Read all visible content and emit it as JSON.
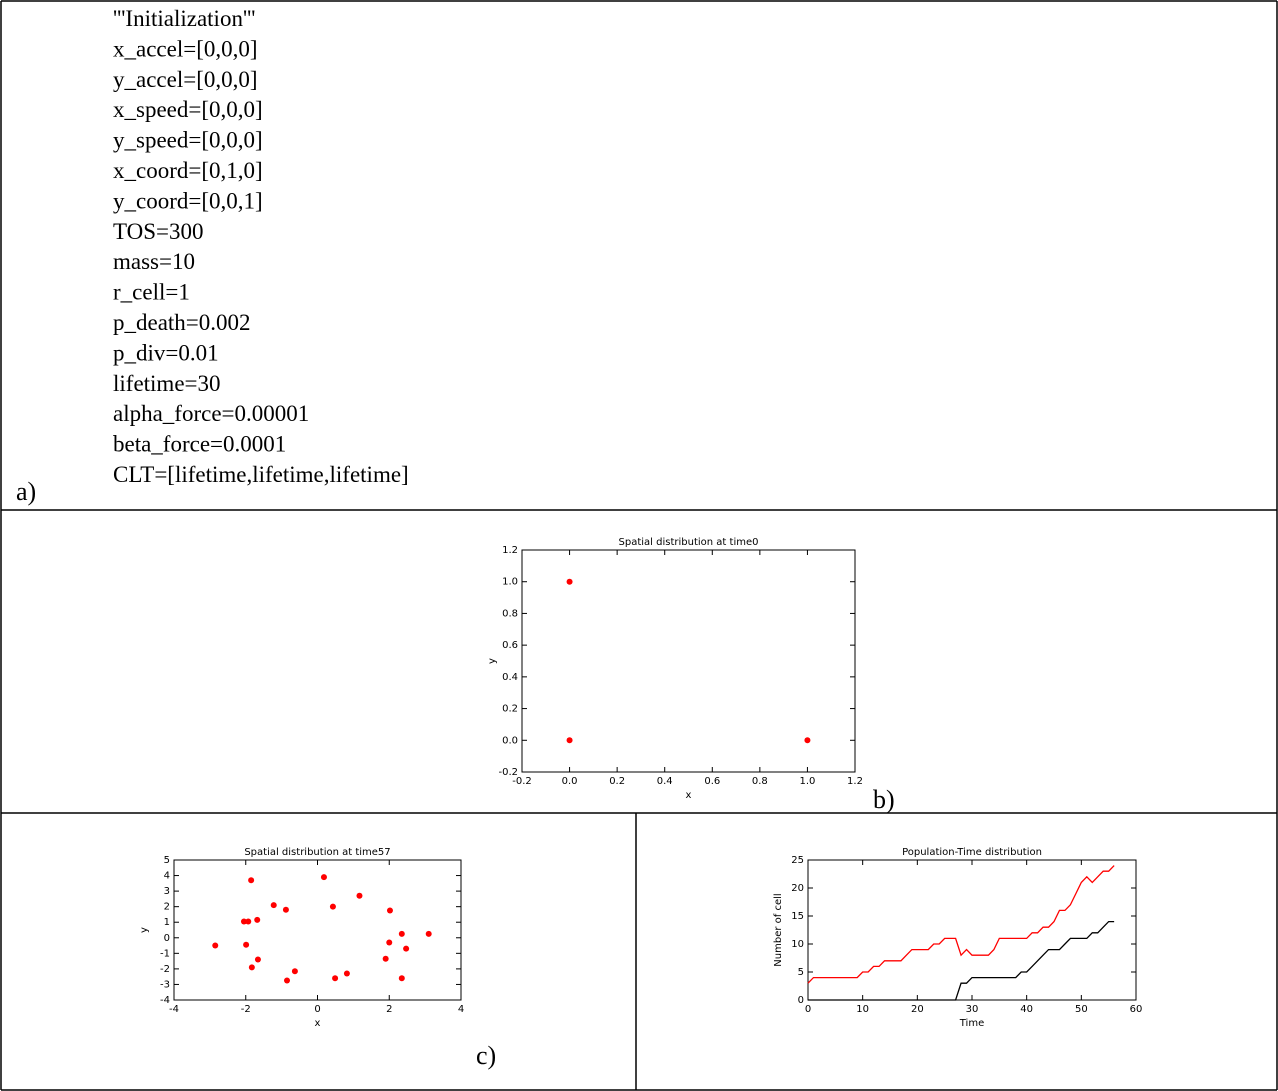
{
  "code_lines": [
    "'''Initialization'''",
    "x_accel=[0,0,0]",
    "y_accel=[0,0,0]",
    "x_speed=[0,0,0]",
    "y_speed=[0,0,0]",
    "x_coord=[0,1,0]",
    "y_coord=[0,0,1]",
    "TOS=300",
    "mass=10",
    "r_cell=1",
    "p_death=0.002",
    "p_div=0.01",
    "lifetime=30",
    "alpha_force=0.00001",
    "beta_force=0.0001",
    " CLT=[lifetime,lifetime,lifetime]"
  ],
  "panel_labels": [
    "a)",
    "b)",
    "c)"
  ],
  "chart_data": [
    {
      "type": "scatter",
      "title": "Spatial distribution at time0",
      "xlabel": "x",
      "ylabel": "y",
      "x": [
        0,
        1,
        0
      ],
      "values": [
        0,
        0,
        1
      ],
      "color": "#ff0000",
      "xlim": [
        -0.2,
        1.2
      ],
      "ylim": [
        -0.2,
        1.2
      ],
      "xticks": [
        -0.2,
        {
          "value": 0,
          "label": "0.0"
        },
        0.2,
        0.4,
        0.6,
        0.8,
        {
          "value": 1,
          "label": "1.0"
        },
        1.2
      ],
      "yticks": [
        -0.2,
        {
          "value": 0,
          "label": "0.0"
        },
        0.2,
        0.4,
        0.6,
        0.8,
        {
          "value": 1,
          "label": "1.0"
        },
        1.2
      ]
    },
    {
      "type": "scatter",
      "title": "Spatial distribution at time57",
      "xlabel": "x",
      "ylabel": "y",
      "x": [
        -1.85,
        0.18,
        1.17,
        -1.22,
        -0.88,
        0.43,
        2.02,
        -2.05,
        -1.93,
        -1.68,
        3.1,
        2.35,
        2.0,
        2.47,
        -2.85,
        -1.99,
        -1.66,
        1.9,
        -1.83,
        -0.63,
        0.82,
        0.49,
        -0.85,
        2.35
      ],
      "values": [
        3.7,
        3.9,
        2.7,
        2.1,
        1.8,
        2.0,
        1.75,
        1.05,
        1.05,
        1.15,
        0.25,
        0.25,
        -0.3,
        -0.7,
        -0.5,
        -0.45,
        -1.4,
        -1.35,
        -1.9,
        -2.15,
        -2.3,
        -2.6,
        -2.75,
        -2.6
      ],
      "color": "#ff0000",
      "xlim": [
        -4,
        4
      ],
      "ylim": [
        -4,
        5
      ],
      "xticks": [
        -4,
        -2,
        0,
        2,
        4
      ],
      "yticks": [
        -4,
        -3,
        -2,
        -1,
        0,
        1,
        2,
        3,
        4,
        5
      ]
    },
    {
      "type": "line",
      "title": "Population-Time distribution",
      "xlabel": "Time",
      "ylabel": "Number of cell",
      "x": [
        0,
        1,
        2,
        3,
        4,
        5,
        6,
        7,
        8,
        9,
        10,
        11,
        12,
        13,
        14,
        15,
        16,
        17,
        18,
        19,
        20,
        21,
        22,
        23,
        24,
        25,
        26,
        27,
        28,
        29,
        30,
        31,
        32,
        33,
        34,
        35,
        36,
        37,
        38,
        39,
        40,
        41,
        42,
        43,
        44,
        45,
        46,
        47,
        48,
        49,
        50,
        51,
        52,
        53,
        54,
        55,
        56
      ],
      "series": [
        {
          "color": "#ff0000",
          "values": [
            3,
            4,
            4,
            4,
            4,
            4,
            4,
            4,
            4,
            4,
            5,
            5,
            6,
            6,
            7,
            7,
            7,
            7,
            8,
            9,
            9,
            9,
            9,
            10,
            10,
            11,
            11,
            11,
            8,
            9,
            8,
            8,
            8,
            8,
            9,
            11,
            11,
            11,
            11,
            11,
            11,
            12,
            12,
            13,
            13,
            14,
            16,
            16,
            17,
            19,
            21,
            22,
            21,
            22,
            23,
            23,
            24
          ]
        },
        {
          "color": "#000000",
          "values": [
            0,
            0,
            0,
            0,
            0,
            0,
            0,
            0,
            0,
            0,
            0,
            0,
            0,
            0,
            0,
            0,
            0,
            0,
            0,
            0,
            0,
            0,
            0,
            0,
            0,
            0,
            0,
            0,
            3,
            3,
            4,
            4,
            4,
            4,
            4,
            4,
            4,
            4,
            4,
            5,
            5,
            6,
            7,
            8,
            9,
            9,
            9,
            10,
            11,
            11,
            11,
            11,
            12,
            12,
            13,
            14,
            14
          ]
        }
      ],
      "xlim": [
        0,
        60
      ],
      "ylim": [
        0,
        25
      ],
      "xticks": [
        0,
        10,
        20,
        30,
        40,
        50,
        60
      ],
      "yticks": [
        0,
        5,
        10,
        15,
        20,
        25
      ]
    }
  ]
}
